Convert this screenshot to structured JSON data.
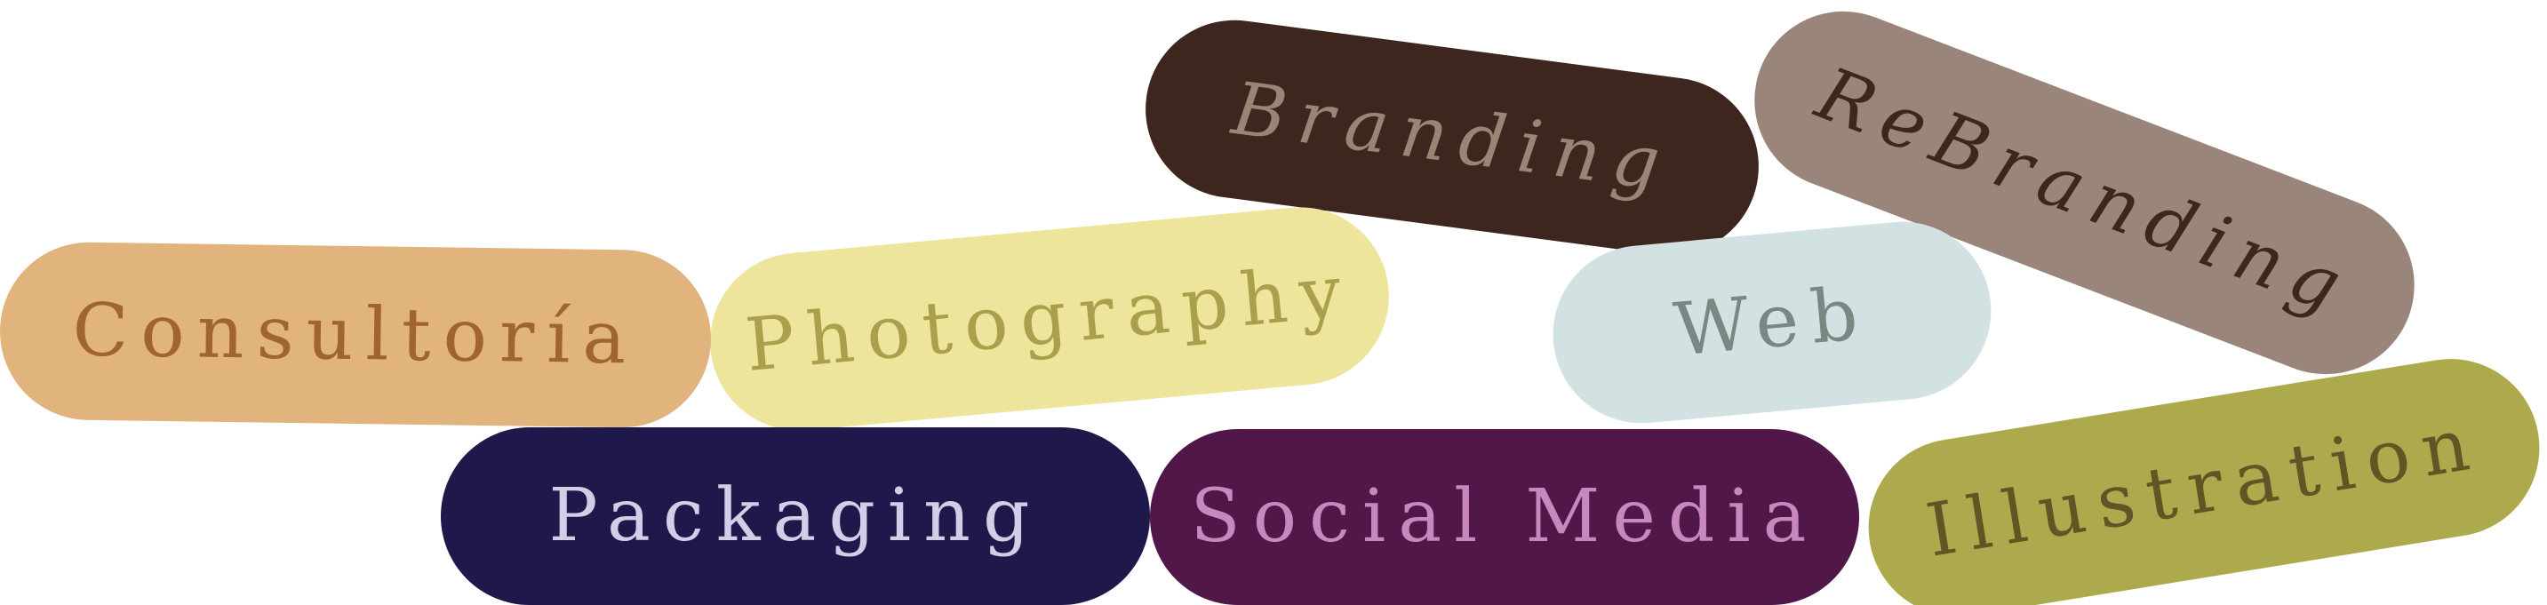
{
  "tags": [
    {
      "key": "branding",
      "label": "Branding",
      "bg": "#3c261d",
      "fg": "#998476"
    },
    {
      "key": "rebranding",
      "label": "ReBranding",
      "bg": "#9a857a",
      "fg": "#3c261d"
    },
    {
      "key": "photography",
      "label": "Photography",
      "bg": "#eee59d",
      "fg": "#aaa04b"
    },
    {
      "key": "consultoria",
      "label": "Consultoría",
      "bg": "#e2b47d",
      "fg": "#a0652f"
    },
    {
      "key": "web",
      "label": "Web",
      "bg": "#d2e1e1",
      "fg": "#7a8783"
    },
    {
      "key": "packaging",
      "label": "Packaging",
      "bg": "#1e184b",
      "fg": "#d3cde8"
    },
    {
      "key": "social_media",
      "label": "Social Media",
      "bg": "#501748",
      "fg": "#c887bd"
    },
    {
      "key": "illustration",
      "label": "Illustration",
      "bg": "#acaa4c",
      "fg": "#5e5624"
    }
  ]
}
